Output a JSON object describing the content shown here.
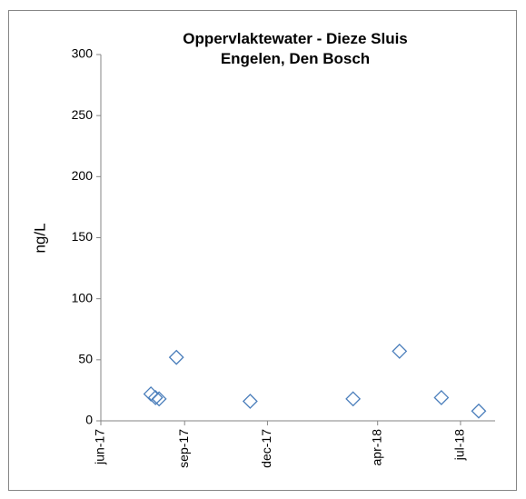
{
  "chart_data": {
    "type": "scatter",
    "title": "Oppervlaktewater - Dieze Sluis Engelen, Den Bosch",
    "y_label": "ng/L",
    "series": [
      {
        "color": "#4a7ebb",
        "x": [
          "2017-07-26",
          "2017-07-31",
          "2017-08-04",
          "2017-08-23",
          "2017-11-12",
          "2018-03-05",
          "2018-04-25",
          "2018-06-10",
          "2018-07-21"
        ],
        "values": [
          22,
          19,
          18,
          52,
          16,
          18,
          57,
          19,
          8
        ]
      }
    ],
    "xlim": [
      "2017-06-01",
      "2018-08-08"
    ],
    "xticks": [
      {
        "value": "2017-06-01",
        "label": "jun-17"
      },
      {
        "value": "2017-09-01",
        "label": "sep-17"
      },
      {
        "value": "2017-12-01",
        "label": "dec-17"
      },
      {
        "value": "2018-04-01",
        "label": "apr-18"
      },
      {
        "value": "2018-07-01",
        "label": "jul-18"
      }
    ],
    "ylim": [
      0,
      300
    ],
    "yticks": [
      0,
      50,
      100,
      150,
      200,
      250,
      300
    ],
    "grid": false
  }
}
